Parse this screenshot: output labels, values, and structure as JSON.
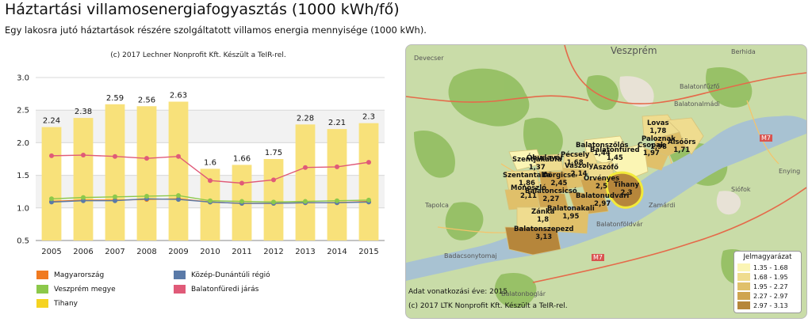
{
  "header": {
    "title": "Háztartási villamosenergiafogyasztás (1000 kWh/fő)",
    "subtitle": "Egy lakosra jutó háztartások részére szolgáltatott villamos energia mennyisége (1000 kWh)."
  },
  "chart_credit": "(c) 2017 Lechner Nonprofit Kft. Készült a TeIR-rel.",
  "chart_data": {
    "type": "bar",
    "categories": [
      "2005",
      "2006",
      "2007",
      "2008",
      "2009",
      "2010",
      "2011",
      "2012",
      "2013",
      "2014",
      "2015"
    ],
    "ylim": [
      0.5,
      3.0
    ],
    "yticks": [
      "0.5",
      "1.0",
      "1.5",
      "2.0",
      "2.5",
      "3.0"
    ],
    "grid": true,
    "legend_position": "bottom",
    "bar_series": {
      "name": "Tihany",
      "values": [
        2.24,
        2.38,
        2.59,
        2.56,
        2.63,
        1.6,
        1.66,
        1.75,
        2.28,
        2.21,
        2.3
      ],
      "labels": [
        "2.24",
        "2.38",
        "2.59",
        "2.56",
        "2.63",
        "1.6",
        "1.66",
        "1.75",
        "2.28",
        "2.21",
        "2.3"
      ],
      "color": "#f8e17a"
    },
    "series": [
      {
        "name": "Magyarország",
        "values": [
          1.1,
          1.12,
          1.12,
          1.13,
          1.14,
          1.09,
          1.07,
          1.07,
          1.08,
          1.08,
          1.1
        ],
        "color": "#f07a20"
      },
      {
        "name": "Közép-Dunántúli régió",
        "values": [
          1.09,
          1.11,
          1.11,
          1.14,
          1.13,
          1.09,
          1.07,
          1.07,
          1.08,
          1.08,
          1.09
        ],
        "color": "#5a7aa8"
      },
      {
        "name": "Veszprém megye",
        "values": [
          1.14,
          1.16,
          1.17,
          1.18,
          1.19,
          1.11,
          1.1,
          1.09,
          1.1,
          1.11,
          1.12
        ],
        "color": "#8cc84a"
      },
      {
        "name": "Balatonfüredi járás",
        "values": [
          1.8,
          1.81,
          1.79,
          1.76,
          1.79,
          1.42,
          1.38,
          1.43,
          1.62,
          1.63,
          1.7
        ],
        "color": "#e05a78"
      }
    ]
  },
  "legend": [
    {
      "name": "Magyarország",
      "color": "#f07a20"
    },
    {
      "name": "Közép-Dunántúli régió",
      "color": "#5a7aa8"
    },
    {
      "name": "Veszprém megye",
      "color": "#8cc84a"
    },
    {
      "name": "Balatonfüredi járás",
      "color": "#e05a78"
    },
    {
      "name": "Tihany",
      "color": "#f8e17a"
    }
  ],
  "map": {
    "places": {
      "devecser": "Devecser",
      "veszprem": "Veszprém",
      "berhida": "Berhida",
      "balatonfuzfo": "Balatonfűzfő",
      "balatonalmadi": "Balatonalmádi",
      "enying": "Enying",
      "siofok": "Siófok",
      "tapolca": "Tapolca",
      "zamardi": "Zamárdi",
      "balatonfoldvar": "Balatonföldvár",
      "badacsonytomaj": "Badacsonytomaj",
      "balatonboglar": "Balatonboglár",
      "m7a": "M7",
      "m7b": "M7"
    },
    "municipalities": [
      {
        "name": "Lovas",
        "value": "1,78"
      },
      {
        "name": "Paloznak",
        "value": "1,98"
      },
      {
        "name": "Csopak",
        "value": "1,97"
      },
      {
        "name": "Alsóörs",
        "value": "1,71"
      },
      {
        "name": "Balatonszőlős",
        "value": "1,44"
      },
      {
        "name": "Balatonfüred",
        "value": "1,45"
      },
      {
        "name": "Pécsely",
        "value": "1,68"
      },
      {
        "name": "Vászoly",
        "value": "2,14"
      },
      {
        "name": "Szentjakabfa",
        "value": "1,37"
      },
      {
        "name": "Óbudavár",
        "value": ""
      },
      {
        "name": "Szentantalfa",
        "value": "1,86"
      },
      {
        "name": "Dörgicse",
        "value": "2,45"
      },
      {
        "name": "Aszófő",
        "value": ""
      },
      {
        "name": "Örvényes",
        "value": "2,5"
      },
      {
        "name": "Tihany",
        "value": "2,3"
      },
      {
        "name": "Monoszló",
        "value": "2,11"
      },
      {
        "name": "Balatonudvari",
        "value": "2,97"
      },
      {
        "name": "Zánka",
        "value": "1,8"
      },
      {
        "name": "Balatonakali",
        "value": "1,95"
      },
      {
        "name": "Balatoncsicsó",
        "value": "2,27"
      },
      {
        "name": "Balatonszepezd",
        "value": "3,13"
      }
    ],
    "legend_title": "Jelmagyarázat",
    "legend_items": [
      {
        "label": "1.35 - 1.68",
        "color": "#fbf5b4"
      },
      {
        "label": "1.68 - 1.95",
        "color": "#efdc8f"
      },
      {
        "label": "1.95 - 2.27",
        "color": "#e0c06a"
      },
      {
        "label": "2.27 - 2.97",
        "color": "#cfa450"
      },
      {
        "label": "2.97 - 3.13",
        "color": "#b6863b"
      }
    ],
    "year_note": "Adat vonatkozási éve: 2015",
    "credit": "(c) 2017 LTK Nonprofit Kft. Készült a TeIR-rel."
  }
}
